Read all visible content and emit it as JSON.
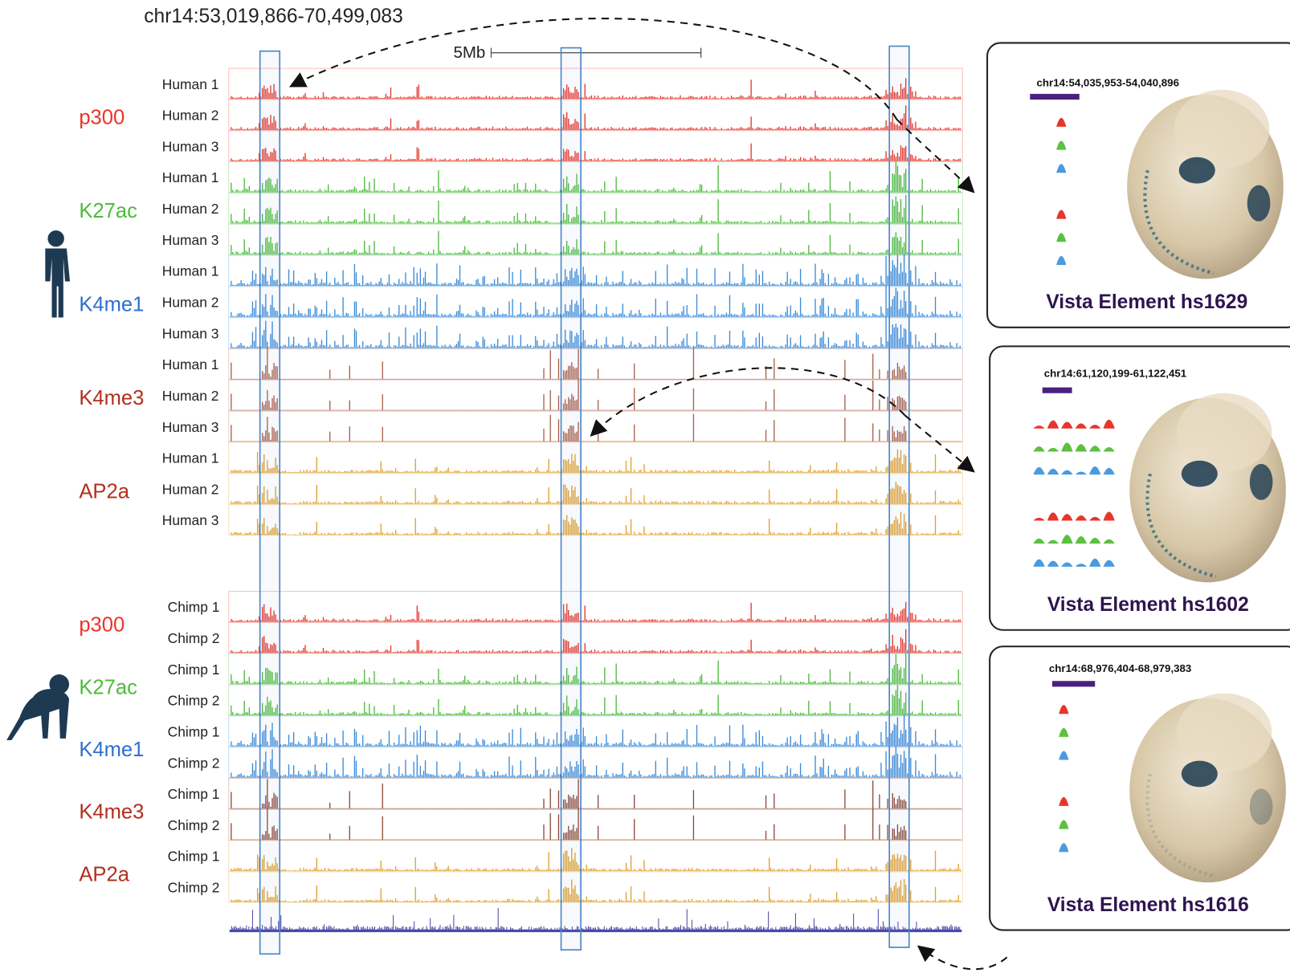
{
  "header": {
    "region": "chr14:53,019,866-70,499,083",
    "scale_bar": "5Mb"
  },
  "human": {
    "groups": [
      {
        "mark": "p300",
        "label_color": "#e8352a",
        "color": "#e8352a",
        "tracks": [
          "Human 1",
          "Human 2",
          "Human 3"
        ]
      },
      {
        "mark": "K27ac",
        "label_color": "#4cbb3a",
        "color": "#4cbb3a",
        "tracks": [
          "Human 1",
          "Human 2",
          "Human 3"
        ]
      },
      {
        "mark": "K4me1",
        "label_color": "#2f6fd0",
        "color": "#3a8ad8",
        "tracks": [
          "Human 1",
          "Human 2",
          "Human 3"
        ]
      },
      {
        "mark": "K4me3",
        "label_color": "#b0301e",
        "color": "#a8604c",
        "tracks": [
          "Human 1",
          "Human 2",
          "Human 3"
        ]
      },
      {
        "mark": "AP2a",
        "label_color": "#b0301e",
        "color": "#e0a030",
        "tracks": [
          "Human 1",
          "Human 2",
          "Human 3"
        ]
      }
    ]
  },
  "chimp": {
    "groups": [
      {
        "mark": "p300",
        "label_color": "#e8352a",
        "color": "#e8352a",
        "tracks": [
          "Chimp 1",
          "Chimp 2"
        ]
      },
      {
        "mark": "K27ac",
        "label_color": "#4cbb3a",
        "color": "#4cbb3a",
        "tracks": [
          "Chimp 1",
          "Chimp 2"
        ]
      },
      {
        "mark": "K4me1",
        "label_color": "#2f6fd0",
        "color": "#3a8ad8",
        "tracks": [
          "Chimp 1",
          "Chimp 2"
        ]
      },
      {
        "mark": "K4me3",
        "label_color": "#b0301e",
        "color": "#8c4a3a",
        "tracks": [
          "Chimp 1",
          "Chimp 2"
        ]
      },
      {
        "mark": "AP2a",
        "label_color": "#b0301e",
        "color": "#e0a030",
        "tracks": [
          "Chimp 1",
          "Chimp 2"
        ]
      }
    ]
  },
  "panels": [
    {
      "region": "chr14:54,035,953-54,040,896",
      "title": "Vista Element hs1629"
    },
    {
      "region": "chr14:61,120,199-61,122,451",
      "title": "Vista Element hs1602"
    },
    {
      "region": "chr14:68,976,404-68,979,383",
      "title": "Vista Element hs1616"
    }
  ]
}
